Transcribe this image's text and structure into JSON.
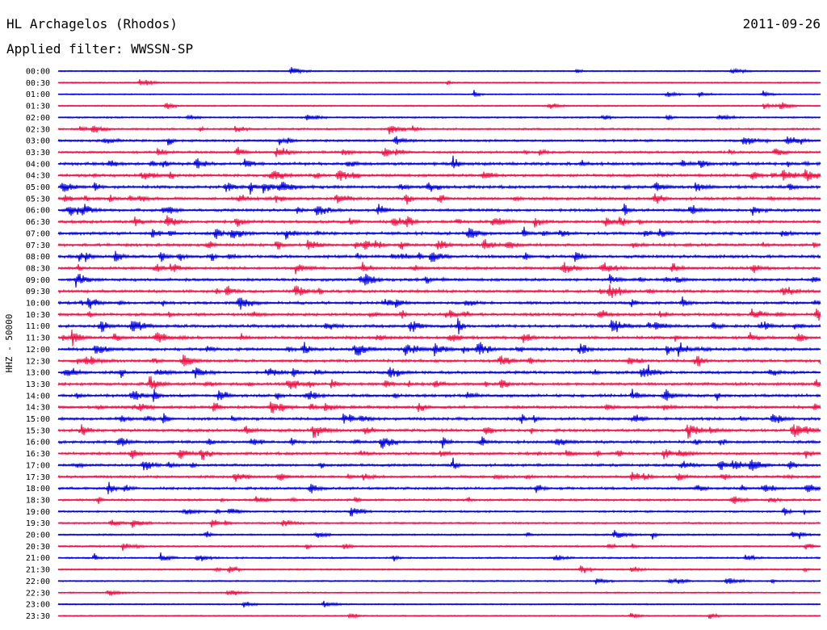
{
  "header": {
    "station": "HL Archagelos (Rhodos)",
    "date": "2011-09-26",
    "filter": "Applied filter: WWSSN-SP"
  },
  "chart_data": {
    "type": "line",
    "ylabel": "HHZ - 50000",
    "row_labels": [
      "00:00",
      "00:30",
      "01:00",
      "01:30",
      "02:00",
      "02:30",
      "03:00",
      "03:30",
      "04:00",
      "04:30",
      "05:00",
      "05:30",
      "06:00",
      "06:30",
      "07:00",
      "07:30",
      "08:00",
      "08:30",
      "09:00",
      "09:30",
      "10:00",
      "10:30",
      "11:00",
      "11:30",
      "12:00",
      "12:30",
      "13:00",
      "13:30",
      "14:00",
      "14:30",
      "15:00",
      "15:30",
      "16:00",
      "16:30",
      "17:00",
      "17:30",
      "18:00",
      "18:30",
      "19:00",
      "19:30",
      "20:00",
      "20:30",
      "21:00",
      "21:30",
      "22:00",
      "22:30",
      "23:00",
      "23:30"
    ],
    "series_colors": [
      "#0000dd",
      "#ee1144"
    ],
    "row_activity": [
      0.1,
      0.15,
      0.1,
      0.15,
      0.25,
      0.4,
      0.55,
      0.6,
      0.85,
      0.8,
      0.85,
      0.85,
      0.8,
      0.8,
      0.85,
      0.8,
      0.85,
      0.7,
      0.8,
      0.8,
      0.75,
      0.8,
      0.85,
      0.85,
      0.85,
      0.8,
      0.75,
      0.8,
      0.8,
      0.8,
      0.8,
      0.8,
      0.8,
      0.75,
      0.7,
      0.65,
      0.65,
      0.5,
      0.4,
      0.35,
      0.3,
      0.3,
      0.3,
      0.25,
      0.2,
      0.15,
      0.15,
      0.1
    ]
  }
}
